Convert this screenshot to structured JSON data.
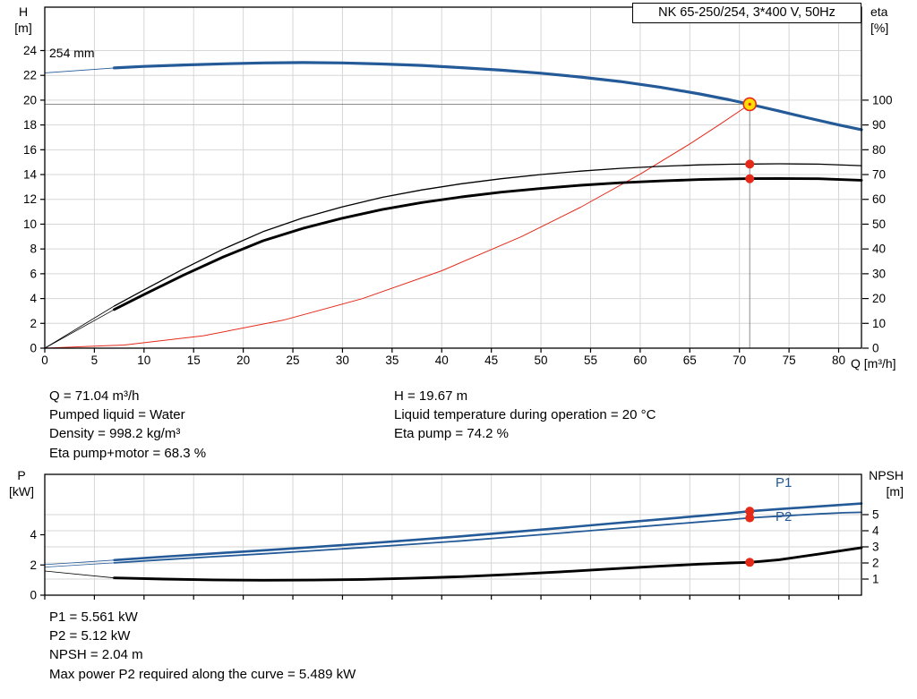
{
  "title_box": "NK 65-250/254, 3*400 V, 50Hz",
  "labels": {
    "h_title": "H",
    "h_unit": "[m]",
    "eta_title": "eta",
    "eta_unit": "[%]",
    "q_axis": "Q [m³/h]",
    "p_title": "P",
    "p_unit": "[kW]",
    "npsh_title": "NPSH",
    "npsh_unit": "[m]",
    "impeller": "254 mm",
    "p1": "P1",
    "p2": "P2"
  },
  "info_top": {
    "col1": [
      "Q = 71.04 m³/h",
      "Pumped liquid = Water",
      "Density = 998.2 kg/m³",
      "Eta pump+motor = 68.3 %"
    ],
    "col2": [
      "H = 19.67 m",
      "Liquid temperature during operation = 20 °C",
      "Eta pump = 74.2 %"
    ]
  },
  "info_bottom": [
    "P1 = 5.561 kW",
    "P2 = 5.12 kW",
    "NPSH = 2.04 m",
    "Max power P2 required along the curve = 5.489 kW"
  ],
  "colors": {
    "blue": "#235a97",
    "black": "#000000",
    "red": "#e52a1a",
    "duty_fill": "#ffdd00",
    "crosshair": "#8c8c8c",
    "grid": "#d6d6d6"
  },
  "chart_data": [
    {
      "type": "line",
      "name": "pump-head-efficiency-chart",
      "title": "NK 65-250/254, 3*400 V, 50Hz",
      "x_axis": {
        "label": "Q [m³/h]",
        "min": 0,
        "max": 82.3,
        "show_labels": true,
        "ticks": [
          0,
          5,
          10,
          15,
          20,
          25,
          30,
          35,
          40,
          45,
          50,
          55,
          60,
          65,
          70,
          75,
          80
        ]
      },
      "y_left": {
        "label": "H [m]",
        "min": 0,
        "max": 27.5,
        "ticks": [
          0,
          2,
          4,
          6,
          8,
          10,
          12,
          14,
          16,
          18,
          20,
          22,
          24
        ]
      },
      "y_right": {
        "label": "eta [%]",
        "min": 0,
        "max": 137.5,
        "ticks": [
          0,
          10,
          20,
          30,
          40,
          50,
          60,
          70,
          80,
          90,
          100
        ]
      },
      "grid_y": "left",
      "duty_point": {
        "q": 71.04,
        "h": 19.67
      },
      "series": [
        {
          "name": "head-curve-leadin",
          "axis": "left",
          "color": "blue",
          "width": 0.9,
          "points": [
            [
              0,
              22.2
            ],
            [
              7,
              22.6
            ]
          ]
        },
        {
          "name": "head-curve-254mm",
          "axis": "left",
          "color": "blue",
          "width": 3.2,
          "points": [
            [
              7,
              22.6
            ],
            [
              10,
              22.72
            ],
            [
              14,
              22.84
            ],
            [
              18,
              22.93
            ],
            [
              22,
              23.0
            ],
            [
              26,
              23.03
            ],
            [
              30,
              23.0
            ],
            [
              34,
              22.92
            ],
            [
              38,
              22.8
            ],
            [
              42,
              22.62
            ],
            [
              46,
              22.42
            ],
            [
              50,
              22.17
            ],
            [
              54,
              21.86
            ],
            [
              58,
              21.5
            ],
            [
              62,
              21.05
            ],
            [
              66,
              20.5
            ],
            [
              69,
              20.03
            ],
            [
              71.04,
              19.67
            ],
            [
              74,
              19.12
            ],
            [
              77,
              18.55
            ],
            [
              80,
              18.0
            ],
            [
              82.3,
              17.62
            ]
          ]
        },
        {
          "name": "system-curve",
          "axis": "left",
          "color": "red",
          "width": 1,
          "points": [
            [
              0,
              0
            ],
            [
              8,
              0.25
            ],
            [
              16,
              1.0
            ],
            [
              24,
              2.25
            ],
            [
              32,
              3.99
            ],
            [
              40,
              6.24
            ],
            [
              48,
              8.98
            ],
            [
              54,
              11.37
            ],
            [
              60,
              14.03
            ],
            [
              65,
              16.47
            ],
            [
              68,
              18.03
            ],
            [
              71.04,
              19.67
            ]
          ]
        },
        {
          "name": "eta-pump-leadin",
          "axis": "right",
          "color": "black",
          "width": 0.8,
          "points": [
            [
              0,
              0
            ],
            [
              7,
              17
            ]
          ]
        },
        {
          "name": "eta-pump-curve",
          "axis": "right",
          "color": "black",
          "width": 1.3,
          "points": [
            [
              7,
              17
            ],
            [
              10,
              23.5
            ],
            [
              14,
              32
            ],
            [
              18,
              40
            ],
            [
              22,
              47
            ],
            [
              26,
              52.5
            ],
            [
              30,
              57
            ],
            [
              34,
              60.8
            ],
            [
              38,
              63.8
            ],
            [
              42,
              66.3
            ],
            [
              46,
              68.3
            ],
            [
              50,
              70
            ],
            [
              54,
              71.4
            ],
            [
              58,
              72.5
            ],
            [
              62,
              73.3
            ],
            [
              66,
              73.9
            ],
            [
              69,
              74.15
            ],
            [
              71.04,
              74.25
            ],
            [
              74,
              74.35
            ],
            [
              78,
              74.2
            ],
            [
              82.3,
              73.6
            ]
          ]
        },
        {
          "name": "eta-pump-motor-leadin",
          "axis": "right",
          "color": "black",
          "width": 0.8,
          "points": [
            [
              0,
              0
            ],
            [
              7,
              15.6
            ]
          ]
        },
        {
          "name": "eta-pump-motor-curve",
          "axis": "right",
          "color": "black",
          "width": 2.9,
          "points": [
            [
              7,
              15.6
            ],
            [
              10,
              21.6
            ],
            [
              14,
              29.5
            ],
            [
              18,
              36.8
            ],
            [
              22,
              43.3
            ],
            [
              26,
              48.3
            ],
            [
              30,
              52.4
            ],
            [
              34,
              55.9
            ],
            [
              38,
              58.7
            ],
            [
              42,
              61
            ],
            [
              46,
              62.9
            ],
            [
              50,
              64.4
            ],
            [
              54,
              65.7
            ],
            [
              58,
              66.7
            ],
            [
              62,
              67.4
            ],
            [
              66,
              68
            ],
            [
              69,
              68.25
            ],
            [
              71.04,
              68.35
            ],
            [
              74,
              68.4
            ],
            [
              78,
              68.3
            ],
            [
              82.3,
              67.7
            ]
          ]
        }
      ],
      "markers": [
        {
          "x": 71.04,
          "y": 74.2,
          "axis": "right",
          "r": 5
        },
        {
          "x": 71.04,
          "y": 68.3,
          "axis": "right",
          "r": 5
        }
      ]
    },
    {
      "type": "line",
      "name": "power-npsh-chart",
      "x_axis": {
        "label": "Q [m³/h]",
        "min": 0,
        "max": 82.3,
        "show_labels": false,
        "ticks": [
          0,
          5,
          10,
          15,
          20,
          25,
          30,
          35,
          40,
          45,
          50,
          55,
          60,
          65,
          70,
          75,
          80
        ]
      },
      "y_left": {
        "label": "P [kW]",
        "min": 0,
        "max": 8,
        "ticks": [
          0,
          2,
          4
        ]
      },
      "y_right": {
        "label": "NPSH [m]",
        "min": 0,
        "max": 7.5,
        "ticks": [
          1,
          2,
          3,
          4,
          5
        ]
      },
      "grid_y": "right",
      "series": [
        {
          "name": "p1-leadin",
          "axis": "left",
          "color": "blue",
          "width": 0.8,
          "points": [
            [
              0,
              2.02
            ],
            [
              7,
              2.32
            ]
          ]
        },
        {
          "name": "p1-curve",
          "axis": "left",
          "color": "blue",
          "width": 2.6,
          "points": [
            [
              7,
              2.32
            ],
            [
              12,
              2.55
            ],
            [
              17,
              2.76
            ],
            [
              22,
              2.97
            ],
            [
              27,
              3.18
            ],
            [
              32,
              3.41
            ],
            [
              37,
              3.65
            ],
            [
              42,
              3.9
            ],
            [
              47,
              4.17
            ],
            [
              52,
              4.45
            ],
            [
              57,
              4.74
            ],
            [
              62,
              5.02
            ],
            [
              66,
              5.25
            ],
            [
              69,
              5.42
            ],
            [
              71.04,
              5.561
            ],
            [
              74,
              5.7
            ],
            [
              78,
              5.88
            ],
            [
              82.3,
              6.07
            ]
          ]
        },
        {
          "name": "p2-leadin",
          "axis": "left",
          "color": "blue",
          "width": 0.8,
          "points": [
            [
              0,
              1.86
            ],
            [
              7,
              2.14
            ]
          ]
        },
        {
          "name": "p2-curve",
          "axis": "left",
          "color": "blue",
          "width": 1.8,
          "points": [
            [
              7,
              2.14
            ],
            [
              12,
              2.35
            ],
            [
              17,
              2.55
            ],
            [
              22,
              2.74
            ],
            [
              27,
              2.94
            ],
            [
              32,
              3.15
            ],
            [
              37,
              3.37
            ],
            [
              42,
              3.6
            ],
            [
              47,
              3.85
            ],
            [
              52,
              4.11
            ],
            [
              57,
              4.38
            ],
            [
              62,
              4.64
            ],
            [
              66,
              4.85
            ],
            [
              69,
              5.0
            ],
            [
              71.04,
              5.12
            ],
            [
              74,
              5.23
            ],
            [
              78,
              5.38
            ],
            [
              80.5,
              5.46
            ],
            [
              82.3,
              5.489
            ]
          ]
        },
        {
          "name": "npsh-leadin",
          "axis": "right",
          "color": "black",
          "width": 0.8,
          "points": [
            [
              0,
              1.5
            ],
            [
              7,
              1.07
            ]
          ]
        },
        {
          "name": "npsh-curve",
          "axis": "right",
          "color": "black",
          "width": 2.9,
          "points": [
            [
              7,
              1.07
            ],
            [
              12,
              1.0
            ],
            [
              17,
              0.95
            ],
            [
              22,
              0.93
            ],
            [
              27,
              0.94
            ],
            [
              32,
              0.98
            ],
            [
              37,
              1.05
            ],
            [
              42,
              1.15
            ],
            [
              47,
              1.29
            ],
            [
              52,
              1.45
            ],
            [
              57,
              1.63
            ],
            [
              62,
              1.8
            ],
            [
              66,
              1.93
            ],
            [
              69,
              2.0
            ],
            [
              71.04,
              2.04
            ],
            [
              74,
              2.2
            ],
            [
              78,
              2.55
            ],
            [
              82.3,
              2.95
            ]
          ]
        }
      ],
      "markers": [
        {
          "x": 71.04,
          "y": 5.561,
          "axis": "left",
          "r": 5
        },
        {
          "x": 71.04,
          "y": 5.12,
          "axis": "left",
          "r": 5
        },
        {
          "x": 71.04,
          "y": 2.04,
          "axis": "right",
          "r": 5
        }
      ]
    }
  ]
}
